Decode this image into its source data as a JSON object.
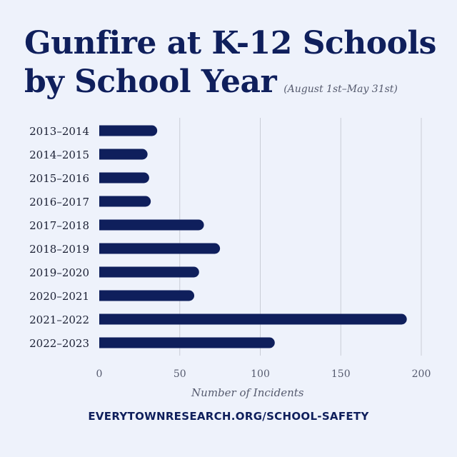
{
  "title_line1": "Gunfire at K-12 Schools",
  "title_line2": "by School Year",
  "subtitle": "(August 1st–May 31st)",
  "footer": "EVERYTOWNRESEARCH.ORG/SCHOOL-SAFETY",
  "colors": {
    "bar": "#0f1f5c",
    "background": "#eef2fb",
    "grid": "#c9ccd6",
    "text": "#1a1f33",
    "axis_text": "#555a6e"
  },
  "chart_data": {
    "type": "bar",
    "orientation": "horizontal",
    "categories": [
      "2013–2014",
      "2014–2015",
      "2015–2016",
      "2016–2017",
      "2017–2018",
      "2018–2019",
      "2019–2020",
      "2020–2021",
      "2021–2022",
      "2022–2023"
    ],
    "values": [
      36,
      30,
      31,
      32,
      65,
      75,
      62,
      59,
      191,
      109
    ],
    "xlabel": "Number of Incidents",
    "ylabel": "",
    "xlim": [
      0,
      200
    ],
    "xticks": [
      0,
      50,
      100,
      150,
      200
    ],
    "grid": true
  }
}
